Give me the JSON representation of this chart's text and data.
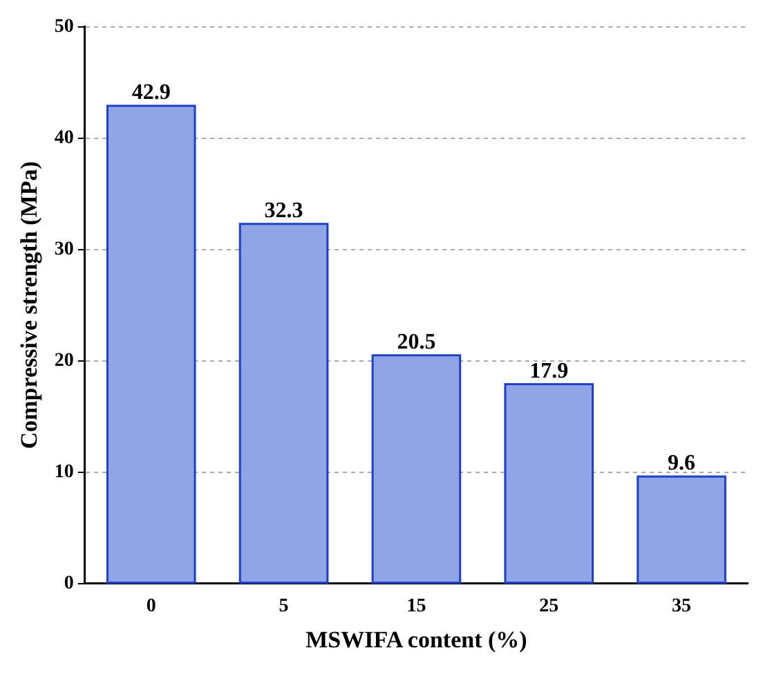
{
  "chart_data": {
    "type": "bar",
    "xlabel": "MSWIFA content (%)",
    "ylabel": "Compressive strength (MPa)",
    "categories": [
      "0",
      "5",
      "15",
      "25",
      "35"
    ],
    "values": [
      42.9,
      32.3,
      20.5,
      17.9,
      9.6
    ],
    "color": "#1f3fc8",
    "ylim": [
      0,
      50
    ],
    "yticks": [
      0,
      10,
      20,
      30,
      40,
      50
    ],
    "grid": "y",
    "data_labels": true
  }
}
